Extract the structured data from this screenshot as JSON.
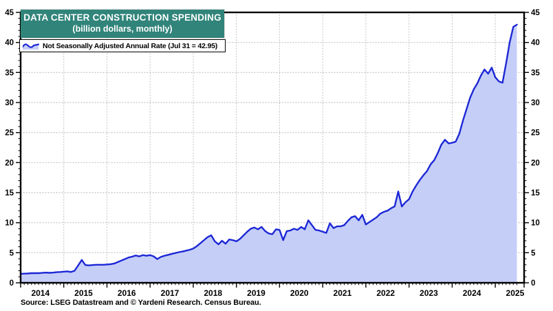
{
  "header": {
    "title": "DATA CENTER CONSTRUCTION SPENDING",
    "subtitle": "(billion dollars, monthly)",
    "title_bg_color": "#31847A",
    "title_text_color": "#FFFFFF"
  },
  "legend": {
    "label": "Not Seasonally Adjusted Annual Rate (Jul 31 = 42.95)",
    "last_point_note": "Jul 31 = 42.95"
  },
  "footer": {
    "source": "Source: LSEG Datastream and © Yardeni Research. Census Bureau."
  },
  "chart_data": {
    "type": "area",
    "title": "DATA CENTER CONSTRUCTION SPENDING",
    "subtitle": "(billion dollars, monthly)",
    "unit": "billion dollars, annual rate",
    "x_start": "2014-01",
    "x_end": "2025-07",
    "x_tick_years": [
      2014,
      2015,
      2016,
      2017,
      2018,
      2019,
      2020,
      2021,
      2022,
      2023,
      2024,
      2025
    ],
    "y_ticks": [
      0,
      5,
      10,
      15,
      20,
      25,
      30,
      35,
      40,
      45
    ],
    "ylim": [
      0,
      45
    ],
    "y_minor_step": 1,
    "grid": "dotted",
    "grid_color": "#bfbfbf",
    "legend_position": "top-left",
    "series": [
      {
        "name": "Not Seasonally Adjusted Annual Rate",
        "line_color": "#1c27d6",
        "fill_color": "#c5cef7",
        "last_value": 42.95,
        "values_by_year": {
          "2014": [
            1.5,
            1.52,
            1.55,
            1.6,
            1.62,
            1.6,
            1.65,
            1.7,
            1.66,
            1.7,
            1.76,
            1.8
          ],
          "2015": [
            1.85,
            1.9,
            1.8,
            2.0,
            2.9,
            3.8,
            2.95,
            2.9,
            2.95,
            3.0,
            3.0,
            3.0
          ],
          "2016": [
            3.05,
            3.1,
            3.2,
            3.45,
            3.7,
            3.95,
            4.2,
            4.35,
            4.55,
            4.4,
            4.6,
            4.5
          ],
          "2017": [
            4.6,
            4.4,
            3.95,
            4.3,
            4.5,
            4.65,
            4.8,
            4.95,
            5.1,
            5.2,
            5.35,
            5.5
          ],
          "2018": [
            5.7,
            6.1,
            6.6,
            7.1,
            7.6,
            7.9,
            6.9,
            6.4,
            7.0,
            6.5,
            7.2,
            7.1
          ],
          "2019": [
            6.9,
            7.3,
            7.9,
            8.5,
            9.0,
            9.2,
            8.9,
            9.3,
            8.6,
            8.2,
            8.1,
            8.9
          ],
          "2020": [
            8.8,
            7.1,
            8.6,
            8.7,
            9.0,
            8.8,
            9.3,
            8.9,
            10.4,
            9.6,
            8.8,
            8.7
          ],
          "2021": [
            8.5,
            8.3,
            9.9,
            9.1,
            9.4,
            9.4,
            9.6,
            10.3,
            10.9,
            11.1,
            10.4,
            11.3
          ],
          "2022": [
            9.7,
            10.1,
            10.5,
            10.9,
            11.5,
            11.8,
            12.0,
            12.4,
            12.7,
            15.2,
            12.7,
            13.4
          ],
          "2023": [
            13.9,
            15.2,
            16.2,
            17.1,
            17.9,
            18.6,
            19.7,
            20.4,
            21.6,
            23.0,
            23.8,
            23.2
          ],
          "2024": [
            23.3,
            23.5,
            24.8,
            27.0,
            28.9,
            30.8,
            32.2,
            33.2,
            34.5,
            35.5,
            34.8,
            35.8
          ],
          "2025": [
            34.2,
            33.5,
            33.3,
            36.5,
            40.0,
            42.6,
            42.95
          ]
        }
      }
    ]
  }
}
